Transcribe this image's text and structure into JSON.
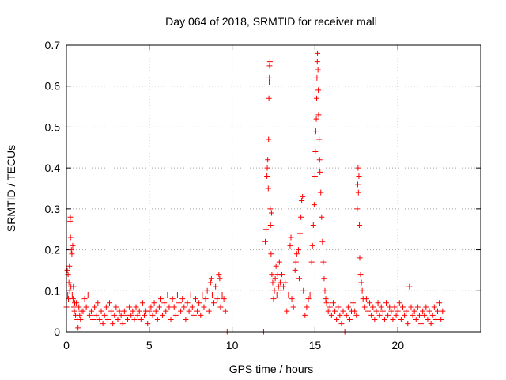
{
  "chart_data": {
    "type": "scatter",
    "title": "Day 064 of 2018, SRMTID for receiver mall",
    "xlabel": "GPS time / hours",
    "ylabel": "SRMTID / TECUs",
    "xlim": [
      0,
      25
    ],
    "ylim": [
      0,
      0.7
    ],
    "x_ticks": [
      0,
      5,
      10,
      15,
      20
    ],
    "x_tick_labels": [
      "0",
      "5",
      "10",
      "15",
      "20"
    ],
    "y_ticks": [
      0,
      0.1,
      0.2,
      0.3,
      0.4,
      0.5,
      0.6,
      0.7
    ],
    "y_tick_labels": [
      "0",
      "0.1",
      "0.2",
      "0.3",
      "0.4",
      "0.5",
      "0.6",
      "0.7"
    ],
    "grid": true,
    "marker": "+",
    "color": "#ff0000",
    "series": [
      {
        "name": "SRMTID",
        "points": [
          [
            0.0,
            0.06
          ],
          [
            0.05,
            0.15
          ],
          [
            0.08,
            0.09
          ],
          [
            0.1,
            0.14
          ],
          [
            0.12,
            0.08
          ],
          [
            0.15,
            0.12
          ],
          [
            0.18,
            0.16
          ],
          [
            0.2,
            0.1
          ],
          [
            0.22,
            0.27
          ],
          [
            0.24,
            0.28
          ],
          [
            0.25,
            0.23
          ],
          [
            0.27,
            0.11
          ],
          [
            0.3,
            0.2
          ],
          [
            0.33,
            0.19
          ],
          [
            0.35,
            0.09
          ],
          [
            0.38,
            0.21
          ],
          [
            0.4,
            0.08
          ],
          [
            0.42,
            0.11
          ],
          [
            0.45,
            0.06
          ],
          [
            0.48,
            0.05
          ],
          [
            0.5,
            0.07
          ],
          [
            0.55,
            0.04
          ],
          [
            0.6,
            0.07
          ],
          [
            0.65,
            0.03
          ],
          [
            0.7,
            0.01
          ],
          [
            0.75,
            0.06
          ],
          [
            0.8,
            0.04
          ],
          [
            0.85,
            0.03
          ],
          [
            0.9,
            0.05
          ],
          [
            1.0,
            0.05
          ],
          [
            1.1,
            0.08
          ],
          [
            1.2,
            0.06
          ],
          [
            1.3,
            0.09
          ],
          [
            1.4,
            0.04
          ],
          [
            1.5,
            0.05
          ],
          [
            1.6,
            0.03
          ],
          [
            1.7,
            0.06
          ],
          [
            1.8,
            0.04
          ],
          [
            1.9,
            0.07
          ],
          [
            2.0,
            0.03
          ],
          [
            2.1,
            0.05
          ],
          [
            2.2,
            0.02
          ],
          [
            2.3,
            0.04
          ],
          [
            2.4,
            0.06
          ],
          [
            2.5,
            0.03
          ],
          [
            2.6,
            0.07
          ],
          [
            2.7,
            0.05
          ],
          [
            2.8,
            0.02
          ],
          [
            2.9,
            0.04
          ],
          [
            3.0,
            0.06
          ],
          [
            3.1,
            0.03
          ],
          [
            3.2,
            0.05
          ],
          [
            3.3,
            0.04
          ],
          [
            3.4,
            0.02
          ],
          [
            3.5,
            0.05
          ],
          [
            3.6,
            0.04
          ],
          [
            3.7,
            0.03
          ],
          [
            3.8,
            0.06
          ],
          [
            3.9,
            0.04
          ],
          [
            4.0,
            0.05
          ],
          [
            4.1,
            0.03
          ],
          [
            4.2,
            0.06
          ],
          [
            4.3,
            0.04
          ],
          [
            4.4,
            0.05
          ],
          [
            4.5,
            0.03
          ],
          [
            4.6,
            0.07
          ],
          [
            4.7,
            0.04
          ],
          [
            4.8,
            0.05
          ],
          [
            4.9,
            0.02
          ],
          [
            5.0,
            0.05
          ],
          [
            5.1,
            0.06
          ],
          [
            5.2,
            0.04
          ],
          [
            5.3,
            0.07
          ],
          [
            5.4,
            0.05
          ],
          [
            5.5,
            0.03
          ],
          [
            5.6,
            0.06
          ],
          [
            5.7,
            0.08
          ],
          [
            5.8,
            0.04
          ],
          [
            5.9,
            0.07
          ],
          [
            6.0,
            0.05
          ],
          [
            6.1,
            0.09
          ],
          [
            6.2,
            0.06
          ],
          [
            6.3,
            0.03
          ],
          [
            6.4,
            0.08
          ],
          [
            6.5,
            0.06
          ],
          [
            6.6,
            0.04
          ],
          [
            6.7,
            0.09
          ],
          [
            6.8,
            0.07
          ],
          [
            6.9,
            0.05
          ],
          [
            7.0,
            0.08
          ],
          [
            7.1,
            0.06
          ],
          [
            7.2,
            0.03
          ],
          [
            7.3,
            0.07
          ],
          [
            7.4,
            0.05
          ],
          [
            7.5,
            0.09
          ],
          [
            7.6,
            0.06
          ],
          [
            7.7,
            0.04
          ],
          [
            7.8,
            0.08
          ],
          [
            7.9,
            0.05
          ],
          [
            8.0,
            0.07
          ],
          [
            8.1,
            0.04
          ],
          [
            8.2,
            0.09
          ],
          [
            8.3,
            0.06
          ],
          [
            8.4,
            0.08
          ],
          [
            8.5,
            0.1
          ],
          [
            8.6,
            0.05
          ],
          [
            8.7,
            0.12
          ],
          [
            8.75,
            0.13
          ],
          [
            8.8,
            0.09
          ],
          [
            8.9,
            0.07
          ],
          [
            9.0,
            0.11
          ],
          [
            9.1,
            0.08
          ],
          [
            9.2,
            0.14
          ],
          [
            9.25,
            0.13
          ],
          [
            9.3,
            0.06
          ],
          [
            9.4,
            0.09
          ],
          [
            9.5,
            0.08
          ],
          [
            9.6,
            0.05
          ],
          [
            9.7,
            0.0
          ],
          [
            11.9,
            0.0
          ],
          [
            12.0,
            0.22
          ],
          [
            12.05,
            0.25
          ],
          [
            12.1,
            0.38
          ],
          [
            12.12,
            0.4
          ],
          [
            12.15,
            0.42
          ],
          [
            12.18,
            0.35
          ],
          [
            12.2,
            0.47
          ],
          [
            12.22,
            0.57
          ],
          [
            12.24,
            0.61
          ],
          [
            12.25,
            0.62
          ],
          [
            12.26,
            0.65
          ],
          [
            12.28,
            0.66
          ],
          [
            12.3,
            0.3
          ],
          [
            12.32,
            0.26
          ],
          [
            12.35,
            0.19
          ],
          [
            12.38,
            0.29
          ],
          [
            12.4,
            0.14
          ],
          [
            12.45,
            0.12
          ],
          [
            12.5,
            0.08
          ],
          [
            12.55,
            0.1
          ],
          [
            12.6,
            0.13
          ],
          [
            12.65,
            0.16
          ],
          [
            12.7,
            0.09
          ],
          [
            12.75,
            0.14
          ],
          [
            12.8,
            0.11
          ],
          [
            12.85,
            0.17
          ],
          [
            12.9,
            0.12
          ],
          [
            12.95,
            0.1
          ],
          [
            13.0,
            0.14
          ],
          [
            13.1,
            0.11
          ],
          [
            13.2,
            0.12
          ],
          [
            13.3,
            0.05
          ],
          [
            13.4,
            0.09
          ],
          [
            13.5,
            0.21
          ],
          [
            13.55,
            0.23
          ],
          [
            13.6,
            0.08
          ],
          [
            13.7,
            0.06
          ],
          [
            13.8,
            0.15
          ],
          [
            13.85,
            0.17
          ],
          [
            13.9,
            0.19
          ],
          [
            14.0,
            0.2
          ],
          [
            14.05,
            0.13
          ],
          [
            14.1,
            0.24
          ],
          [
            14.15,
            0.28
          ],
          [
            14.2,
            0.32
          ],
          [
            14.25,
            0.33
          ],
          [
            14.3,
            0.1
          ],
          [
            14.4,
            0.04
          ],
          [
            14.5,
            0.06
          ],
          [
            14.6,
            0.08
          ],
          [
            14.7,
            0.09
          ],
          [
            14.8,
            0.17
          ],
          [
            14.85,
            0.21
          ],
          [
            14.9,
            0.26
          ],
          [
            14.95,
            0.31
          ],
          [
            15.0,
            0.38
          ],
          [
            15.02,
            0.44
          ],
          [
            15.05,
            0.49
          ],
          [
            15.08,
            0.52
          ],
          [
            15.1,
            0.57
          ],
          [
            15.12,
            0.62
          ],
          [
            15.14,
            0.66
          ],
          [
            15.15,
            0.68
          ],
          [
            15.18,
            0.64
          ],
          [
            15.2,
            0.59
          ],
          [
            15.22,
            0.53
          ],
          [
            15.25,
            0.47
          ],
          [
            15.28,
            0.42
          ],
          [
            15.3,
            0.39
          ],
          [
            15.35,
            0.34
          ],
          [
            15.4,
            0.28
          ],
          [
            15.45,
            0.22
          ],
          [
            15.5,
            0.17
          ],
          [
            15.55,
            0.13
          ],
          [
            15.6,
            0.1
          ],
          [
            15.65,
            0.08
          ],
          [
            15.7,
            0.07
          ],
          [
            15.8,
            0.05
          ],
          [
            15.9,
            0.06
          ],
          [
            16.0,
            0.04
          ],
          [
            16.1,
            0.07
          ],
          [
            16.2,
            0.05
          ],
          [
            16.3,
            0.03
          ],
          [
            16.4,
            0.06
          ],
          [
            16.5,
            0.04
          ],
          [
            16.6,
            0.02
          ],
          [
            16.7,
            0.05
          ],
          [
            16.8,
            0.0
          ],
          [
            16.9,
            0.04
          ],
          [
            17.0,
            0.06
          ],
          [
            17.1,
            0.03
          ],
          [
            17.2,
            0.05
          ],
          [
            17.3,
            0.07
          ],
          [
            17.4,
            0.05
          ],
          [
            17.5,
            0.04
          ],
          [
            17.55,
            0.3
          ],
          [
            17.58,
            0.36
          ],
          [
            17.6,
            0.4
          ],
          [
            17.62,
            0.34
          ],
          [
            17.65,
            0.38
          ],
          [
            17.68,
            0.26
          ],
          [
            17.7,
            0.18
          ],
          [
            17.75,
            0.14
          ],
          [
            17.8,
            0.12
          ],
          [
            17.85,
            0.1
          ],
          [
            17.9,
            0.08
          ],
          [
            18.0,
            0.06
          ],
          [
            18.1,
            0.08
          ],
          [
            18.2,
            0.05
          ],
          [
            18.3,
            0.07
          ],
          [
            18.4,
            0.04
          ],
          [
            18.5,
            0.06
          ],
          [
            18.6,
            0.03
          ],
          [
            18.7,
            0.05
          ],
          [
            18.8,
            0.07
          ],
          [
            18.9,
            0.04
          ],
          [
            19.0,
            0.06
          ],
          [
            19.1,
            0.05
          ],
          [
            19.2,
            0.03
          ],
          [
            19.3,
            0.07
          ],
          [
            19.4,
            0.04
          ],
          [
            19.5,
            0.06
          ],
          [
            19.6,
            0.05
          ],
          [
            19.7,
            0.03
          ],
          [
            19.8,
            0.06
          ],
          [
            19.9,
            0.04
          ],
          [
            20.0,
            0.05
          ],
          [
            20.1,
            0.07
          ],
          [
            20.2,
            0.03
          ],
          [
            20.3,
            0.06
          ],
          [
            20.4,
            0.04
          ],
          [
            20.5,
            0.05
          ],
          [
            20.6,
            0.02
          ],
          [
            20.7,
            0.11
          ],
          [
            20.8,
            0.06
          ],
          [
            20.9,
            0.04
          ],
          [
            21.0,
            0.05
          ],
          [
            21.1,
            0.03
          ],
          [
            21.2,
            0.06
          ],
          [
            21.3,
            0.04
          ],
          [
            21.4,
            0.02
          ],
          [
            21.5,
            0.05
          ],
          [
            21.6,
            0.04
          ],
          [
            21.7,
            0.06
          ],
          [
            21.8,
            0.03
          ],
          [
            21.9,
            0.05
          ],
          [
            22.0,
            0.02
          ],
          [
            22.1,
            0.04
          ],
          [
            22.2,
            0.06
          ],
          [
            22.3,
            0.03
          ],
          [
            22.4,
            0.05
          ],
          [
            22.5,
            0.07
          ],
          [
            22.6,
            0.03
          ],
          [
            22.7,
            0.05
          ]
        ]
      }
    ]
  }
}
